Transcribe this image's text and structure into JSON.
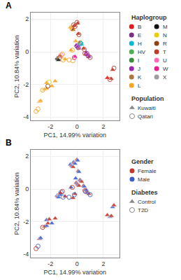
{
  "chart_data": [
    {
      "type": "scatter",
      "title": "A",
      "x_label": "PC1, 14.99% variation",
      "y_label": "PC2, 10.84% variation",
      "xlim": [
        -3.5,
        3.2
      ],
      "ylim": [
        -4.2,
        2.4
      ],
      "xticks": [
        -2,
        0,
        2
      ],
      "yticks": [
        -4,
        -2,
        0,
        2
      ],
      "grid": true,
      "legend": "right",
      "color_groups": {
        "title": "Haplogroup",
        "items": [
          {
            "name": "B",
            "color": "#e41a1c"
          },
          {
            "name": "E",
            "color": "#7b2d8b"
          },
          {
            "name": "H",
            "color": "#00bcd4"
          },
          {
            "name": "HV",
            "color": "#4caf50"
          },
          {
            "name": "I",
            "color": "#388e3c"
          },
          {
            "name": "J",
            "color": "#9c27b0"
          },
          {
            "name": "K",
            "color": "#b07540"
          },
          {
            "name": "L",
            "color": "#f5a623"
          },
          {
            "name": "M",
            "color": "#111111"
          },
          {
            "name": "N",
            "color": "#e8d000"
          },
          {
            "name": "R",
            "color": "#8b4513"
          },
          {
            "name": "T",
            "color": "#c0392b"
          },
          {
            "name": "U",
            "color": "#ff69b4"
          },
          {
            "name": "W",
            "color": "#e91e8c"
          },
          {
            "name": "X",
            "color": "#9e9e9e"
          }
        ]
      },
      "series_title": "Population",
      "series": [
        {
          "name": "Kuwaiti",
          "marker": "triangle-up",
          "color": "#888888",
          "x": [
            -2.85,
            -2.75,
            -2.45,
            -2.3,
            -2.3,
            -1.9,
            -1.65,
            -1.5,
            -1.45,
            -1.4,
            -1.35,
            -1.25,
            -0.9,
            -0.15,
            -0.45,
            -0.1,
            -0.05,
            0.05,
            0.15,
            0.2,
            0.35,
            -0.5,
            -0.4,
            -0.3,
            -0.2,
            0.05,
            0.1,
            0.5,
            0.65,
            0.7,
            0.8,
            0.9,
            2.3,
            2.6,
            2.7
          ],
          "y": [
            -3.05,
            -3.0,
            -2.3,
            -2.25,
            -1.9,
            -2.1,
            -1.8,
            -0.4,
            -0.45,
            -0.5,
            -0.3,
            -0.25,
            -0.45,
            -0.3,
            0.1,
            0.65,
            0.4,
            0.3,
            0.2,
            0.55,
            0.45,
            1.5,
            1.45,
            1.35,
            1.6,
            1.75,
            1.1,
            0.2,
            -0.15,
            -0.05,
            -0.2,
            -0.3,
            -1.6,
            -1.65,
            -1.1
          ],
          "groups": [
            "L",
            "L",
            "L",
            "L",
            "L",
            "L",
            "L",
            "M",
            "M",
            "M",
            "R",
            "K",
            "L",
            "W",
            "L",
            "L",
            "J",
            "J",
            "K",
            "K",
            "H",
            "L",
            "L",
            "R",
            "T",
            "T",
            "T",
            "T",
            "T",
            "J",
            "J",
            "J",
            "B",
            "T",
            "T"
          ]
        },
        {
          "name": "Qatari",
          "marker": "circle-open",
          "color": "#888888",
          "x": [
            -3.1,
            -2.95,
            -2.6,
            -2.2,
            -2.1,
            -1.3,
            -1.2,
            -1.1,
            -1.05,
            -0.6,
            -0.3,
            -0.2,
            -0.35,
            0.0,
            0.1,
            0.25,
            0.3,
            -0.35,
            -0.25,
            -0.15,
            0.0,
            0.15,
            0.55,
            0.6,
            0.75,
            0.85,
            1.0,
            2.5,
            2.8
          ],
          "y": [
            -3.65,
            -3.5,
            -2.35,
            -2.1,
            -1.85,
            -0.35,
            -0.2,
            -0.15,
            -0.5,
            -0.5,
            -0.55,
            -0.35,
            0.1,
            0.35,
            0.25,
            0.55,
            0.5,
            1.4,
            1.65,
            1.55,
            1.8,
            1.05,
            0.15,
            -0.1,
            -0.1,
            -0.25,
            -0.35,
            -1.7,
            -1.0
          ],
          "groups": [
            "L",
            "L",
            "L",
            "R",
            "N",
            "R",
            "U",
            "L",
            "L",
            "L",
            "L",
            "W",
            "L",
            "J",
            "J",
            "K",
            "H",
            "L",
            "R",
            "T",
            "T",
            "T",
            "T",
            "T",
            "J",
            "J",
            "T",
            "T",
            "T"
          ]
        }
      ]
    },
    {
      "type": "scatter",
      "title": "B",
      "x_label": "PC1, 14.99% variation",
      "y_label": "PC2, 10.84% variation",
      "xlim": [
        -3.5,
        3.2
      ],
      "ylim": [
        -4.2,
        2.4
      ],
      "xticks": [
        -2,
        0,
        2
      ],
      "yticks": [
        -4,
        -2,
        0,
        2
      ],
      "grid": true,
      "legend": "right",
      "color_groups": {
        "title": "Gender",
        "items": [
          {
            "name": "Female",
            "color": "#c0392b"
          },
          {
            "name": "Male",
            "color": "#3a5fcd"
          }
        ]
      },
      "series_title": "Diabetes",
      "series": [
        {
          "name": "Control",
          "marker": "triangle-up",
          "color": "#888888",
          "x": [
            -2.85,
            -2.75,
            -2.45,
            -2.3,
            -2.2,
            -2.3,
            -2.1,
            -1.9,
            -1.65,
            -1.5,
            -1.45,
            -1.4,
            -1.35,
            -1.3,
            -1.25,
            -0.9,
            -0.3,
            -0.15,
            -0.45,
            -0.1,
            -0.05,
            0.0,
            0.05,
            0.1,
            0.15,
            0.2,
            0.25,
            0.3,
            0.35,
            -0.5,
            -0.4,
            -0.35,
            -0.3,
            -0.25,
            -0.2,
            -0.15,
            0.0,
            0.05,
            0.1,
            0.15,
            0.5,
            0.55,
            0.7,
            0.75,
            0.8,
            0.85,
            0.9,
            2.3,
            2.5,
            2.6,
            2.7,
            2.8
          ],
          "y": [
            -3.05,
            -3.0,
            -2.3,
            -2.25,
            -2.1,
            -1.9,
            -1.85,
            -2.1,
            -1.8,
            -0.4,
            -0.45,
            -0.5,
            -0.3,
            -0.35,
            -0.25,
            -0.45,
            -0.55,
            -0.3,
            0.1,
            0.65,
            0.4,
            0.35,
            0.3,
            0.25,
            0.2,
            0.55,
            0.55,
            0.5,
            0.45,
            1.5,
            1.45,
            1.4,
            1.35,
            1.65,
            1.6,
            1.55,
            1.8,
            1.75,
            1.1,
            1.05,
            0.2,
            0.15,
            -0.05,
            -0.1,
            -0.2,
            -0.25,
            -0.3,
            -1.6,
            -1.7,
            -1.65,
            -1.1,
            -1.0
          ],
          "groups": [
            "Female",
            "Male",
            "Female",
            "Male",
            "Female",
            "Male",
            "Female",
            "Male",
            "Female",
            "Male",
            "Female",
            "Male",
            "Female",
            "Male",
            "Female",
            "Female",
            "Female",
            "Female",
            "Male",
            "Male",
            "Female",
            "Male",
            "Female",
            "Male",
            "Female",
            "Male",
            "Female",
            "Male",
            "Female",
            "Male",
            "Female",
            "Male",
            "Female",
            "Male",
            "Female",
            "Male",
            "Female",
            "Male",
            "Female",
            "Male",
            "Female",
            "Male",
            "Female",
            "Male",
            "Female",
            "Male",
            "Female",
            "Female",
            "Male",
            "Female",
            "Male",
            "Female"
          ]
        },
        {
          "name": "T2D",
          "marker": "circle-open",
          "color": "#888888",
          "x": [
            -3.1,
            -2.95,
            -2.6,
            -1.2,
            -1.1,
            -1.05,
            -0.6,
            -0.2,
            -0.35,
            0.6,
            0.65,
            1.0
          ],
          "y": [
            -3.65,
            -3.5,
            -2.35,
            -0.2,
            -0.15,
            -0.5,
            -0.5,
            -0.35,
            0.1,
            -0.1,
            -0.15,
            -0.35
          ],
          "groups": [
            "Female",
            "Male",
            "Female",
            "Male",
            "Female",
            "Male",
            "Male",
            "Male",
            "Female",
            "Female",
            "Male",
            "Male"
          ]
        }
      ]
    }
  ]
}
